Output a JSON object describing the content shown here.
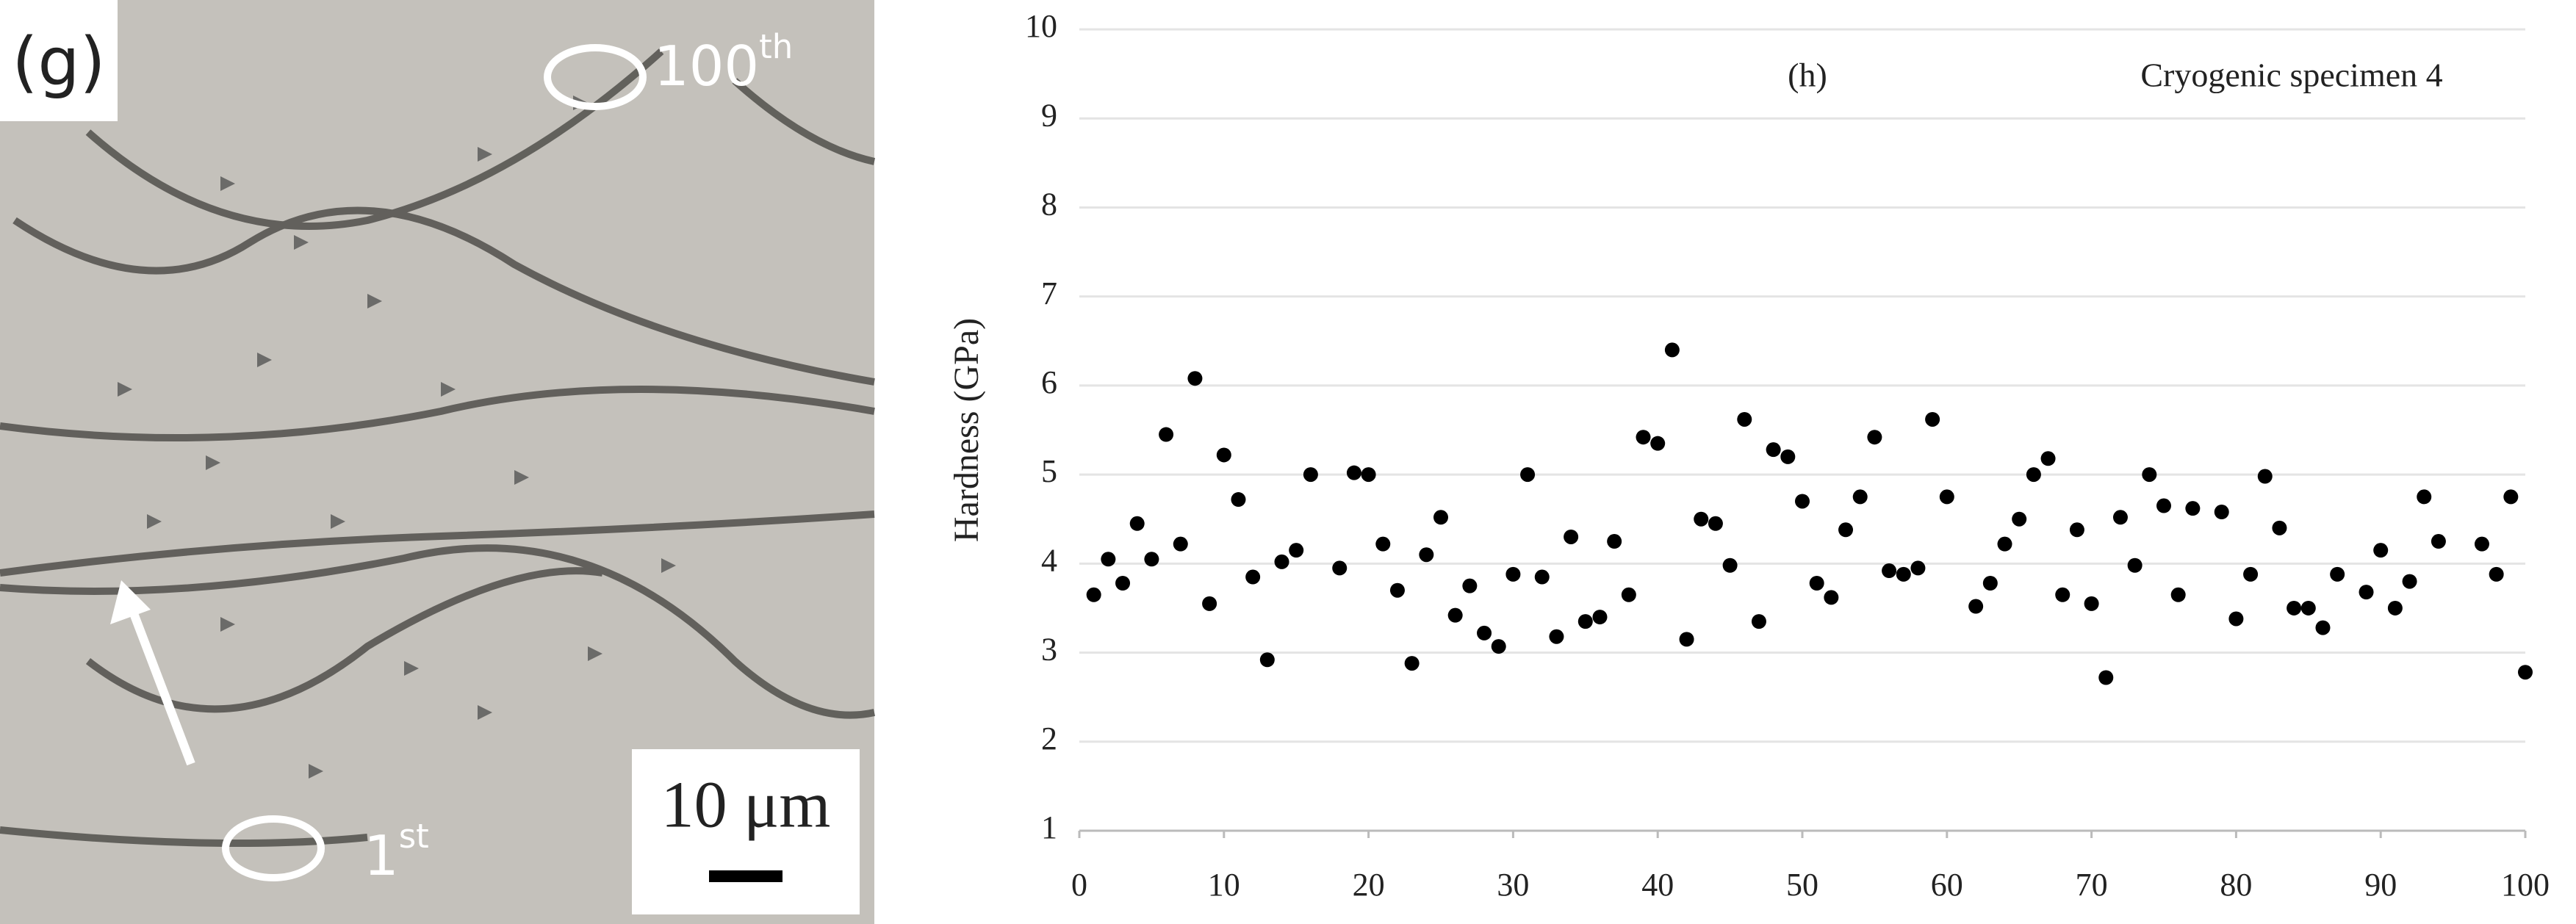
{
  "micrograph": {
    "panel": "(g)",
    "end_label": {
      "number": "100",
      "suffix": "th"
    },
    "start_label": {
      "number": "1",
      "suffix": "st"
    },
    "scale_bar": "10 μm"
  },
  "chart_data": {
    "type": "scatter",
    "title": "(h)",
    "annotation": "Cryogenic specimen 4",
    "y_label": "Hardness (GPa)",
    "x": [
      1,
      2,
      3,
      4,
      5,
      6,
      7,
      8,
      9,
      10,
      11,
      12,
      13,
      14,
      15,
      16,
      18,
      19,
      20,
      21,
      22,
      23,
      24,
      25,
      26,
      27,
      28,
      29,
      30,
      31,
      32,
      33,
      34,
      35,
      36,
      37,
      38,
      39,
      40,
      41,
      42,
      43,
      44,
      45,
      46,
      47,
      48,
      49,
      50,
      51,
      52,
      53,
      54,
      55,
      56,
      57,
      58,
      59,
      60,
      62,
      63,
      64,
      65,
      66,
      67,
      68,
      69,
      70,
      71,
      72,
      73,
      74,
      75,
      76,
      77,
      79,
      80,
      81,
      82,
      83,
      84,
      85,
      86,
      87,
      89,
      90,
      91,
      92,
      93,
      94,
      97,
      98,
      99,
      100
    ],
    "values": [
      3.65,
      4.05,
      3.78,
      4.45,
      4.05,
      5.45,
      4.22,
      6.08,
      3.55,
      5.22,
      4.72,
      3.85,
      2.92,
      4.02,
      4.15,
      5.0,
      3.95,
      5.02,
      5.0,
      4.22,
      3.7,
      2.88,
      4.1,
      4.52,
      3.42,
      3.75,
      3.22,
      3.07,
      3.88,
      5.0,
      3.85,
      3.18,
      4.3,
      3.35,
      3.4,
      4.25,
      3.65,
      5.42,
      5.35,
      6.4,
      3.15,
      4.5,
      4.45,
      3.98,
      5.62,
      3.35,
      5.28,
      5.2,
      4.7,
      3.78,
      3.62,
      4.38,
      4.75,
      5.42,
      3.92,
      3.88,
      3.95,
      5.62,
      4.75,
      3.52,
      3.78,
      4.22,
      4.5,
      5.0,
      5.18,
      3.65,
      4.38,
      3.55,
      2.72,
      4.52,
      3.98,
      5.0,
      4.65,
      3.65,
      4.62,
      4.58,
      3.38,
      3.88,
      4.98,
      4.4,
      3.5,
      3.5,
      3.28,
      3.88,
      3.68,
      4.15,
      3.5,
      3.8,
      4.75,
      4.25,
      4.22,
      3.88,
      4.75,
      2.78
    ],
    "color": "#000000",
    "xlim": [
      0,
      100
    ],
    "xticks": [
      0,
      10,
      20,
      30,
      40,
      50,
      60,
      70,
      80,
      90,
      100
    ],
    "ylim": [
      1,
      10
    ],
    "yticks": [
      1,
      2,
      3,
      4,
      5,
      6,
      7,
      8,
      9,
      10
    ],
    "grid": true
  }
}
